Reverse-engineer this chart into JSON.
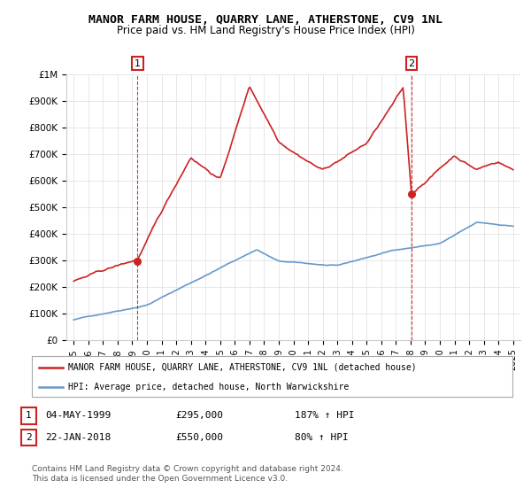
{
  "title": "MANOR FARM HOUSE, QUARRY LANE, ATHERSTONE, CV9 1NL",
  "subtitle": "Price paid vs. HM Land Registry's House Price Index (HPI)",
  "hpi_color": "#6699cc",
  "price_color": "#cc2222",
  "marker_color": "#cc2222",
  "vline_color": "#cc2222",
  "ylim": [
    0,
    1000000
  ],
  "yticks": [
    0,
    100000,
    200000,
    300000,
    400000,
    500000,
    600000,
    700000,
    800000,
    900000,
    1000000
  ],
  "ytick_labels": [
    "£0",
    "£100K",
    "£200K",
    "£300K",
    "£400K",
    "£500K",
    "£600K",
    "£700K",
    "£800K",
    "£900K",
    "£1M"
  ],
  "purchase1_year": 1999.35,
  "purchase1_price": 295000,
  "purchase1_label": "1",
  "purchase2_year": 2018.06,
  "purchase2_price": 550000,
  "purchase2_label": "2",
  "legend_line1": "MANOR FARM HOUSE, QUARRY LANE, ATHERSTONE, CV9 1NL (detached house)",
  "legend_line2": "HPI: Average price, detached house, North Warwickshire",
  "table_row1": [
    "1",
    "04-MAY-1999",
    "£295,000",
    "187% ↑ HPI"
  ],
  "table_row2": [
    "2",
    "22-JAN-2018",
    "£550,000",
    "80% ↑ HPI"
  ],
  "footer": "Contains HM Land Registry data © Crown copyright and database right 2024.\nThis data is licensed under the Open Government Licence v3.0.",
  "background_color": "#ffffff",
  "grid_color": "#dddddd"
}
